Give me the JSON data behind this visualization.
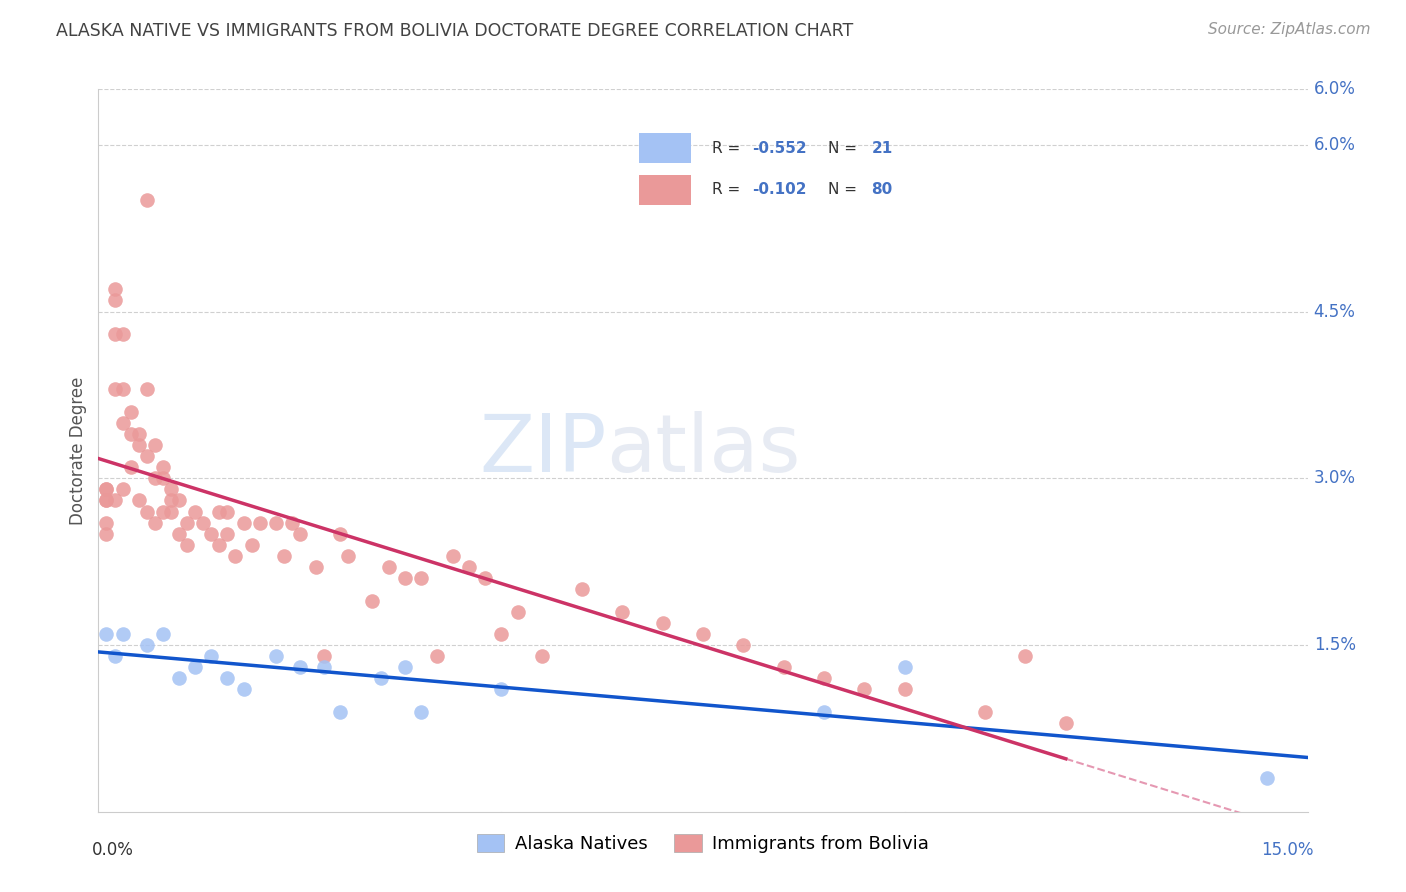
{
  "title": "ALASKA NATIVE VS IMMIGRANTS FROM BOLIVIA DOCTORATE DEGREE CORRELATION CHART",
  "source": "Source: ZipAtlas.com",
  "ylabel": "Doctorate Degree",
  "right_yticks": [
    "6.0%",
    "4.5%",
    "3.0%",
    "1.5%"
  ],
  "right_ytick_vals": [
    0.06,
    0.045,
    0.03,
    0.015
  ],
  "alaska_color": "#a4c2f4",
  "bolivia_color": "#ea9999",
  "alaska_line_color": "#1155cc",
  "bolivia_line_color": "#cc3366",
  "watermark_zip": "ZIP",
  "watermark_atlas": "atlas",
  "alaska_scatter_x": [
    0.001,
    0.002,
    0.003,
    0.006,
    0.008,
    0.01,
    0.012,
    0.014,
    0.016,
    0.018,
    0.022,
    0.025,
    0.028,
    0.03,
    0.035,
    0.038,
    0.04,
    0.05,
    0.09,
    0.1,
    0.145
  ],
  "alaska_scatter_y": [
    0.016,
    0.014,
    0.016,
    0.015,
    0.016,
    0.012,
    0.013,
    0.014,
    0.012,
    0.011,
    0.014,
    0.013,
    0.013,
    0.009,
    0.012,
    0.013,
    0.009,
    0.011,
    0.009,
    0.013,
    0.003
  ],
  "bolivia_scatter_x": [
    0.001,
    0.001,
    0.001,
    0.001,
    0.001,
    0.001,
    0.002,
    0.002,
    0.002,
    0.002,
    0.002,
    0.003,
    0.003,
    0.003,
    0.003,
    0.004,
    0.004,
    0.004,
    0.005,
    0.005,
    0.005,
    0.006,
    0.006,
    0.006,
    0.006,
    0.007,
    0.007,
    0.007,
    0.008,
    0.008,
    0.008,
    0.009,
    0.009,
    0.009,
    0.01,
    0.01,
    0.011,
    0.011,
    0.012,
    0.013,
    0.014,
    0.015,
    0.015,
    0.016,
    0.016,
    0.017,
    0.018,
    0.019,
    0.02,
    0.022,
    0.023,
    0.024,
    0.025,
    0.027,
    0.028,
    0.03,
    0.031,
    0.034,
    0.036,
    0.038,
    0.04,
    0.042,
    0.044,
    0.046,
    0.048,
    0.05,
    0.052,
    0.055,
    0.06,
    0.065,
    0.07,
    0.075,
    0.08,
    0.085,
    0.09,
    0.095,
    0.1,
    0.11,
    0.115,
    0.12
  ],
  "bolivia_scatter_y": [
    0.029,
    0.029,
    0.028,
    0.028,
    0.026,
    0.025,
    0.047,
    0.046,
    0.043,
    0.038,
    0.028,
    0.043,
    0.038,
    0.035,
    0.029,
    0.036,
    0.034,
    0.031,
    0.034,
    0.033,
    0.028,
    0.055,
    0.038,
    0.032,
    0.027,
    0.033,
    0.03,
    0.026,
    0.031,
    0.03,
    0.027,
    0.029,
    0.028,
    0.027,
    0.028,
    0.025,
    0.026,
    0.024,
    0.027,
    0.026,
    0.025,
    0.027,
    0.024,
    0.027,
    0.025,
    0.023,
    0.026,
    0.024,
    0.026,
    0.026,
    0.023,
    0.026,
    0.025,
    0.022,
    0.014,
    0.025,
    0.023,
    0.019,
    0.022,
    0.021,
    0.021,
    0.014,
    0.023,
    0.022,
    0.021,
    0.016,
    0.018,
    0.014,
    0.02,
    0.018,
    0.017,
    0.016,
    0.015,
    0.013,
    0.012,
    0.011,
    0.011,
    0.009,
    0.014,
    0.008
  ],
  "xlim": [
    0.0,
    0.15
  ],
  "ylim": [
    0.0,
    0.065
  ],
  "background_color": "#ffffff",
  "grid_color": "#d0d0d0",
  "right_label_color": "#4472c4",
  "title_color": "#434343",
  "source_color": "#999999"
}
